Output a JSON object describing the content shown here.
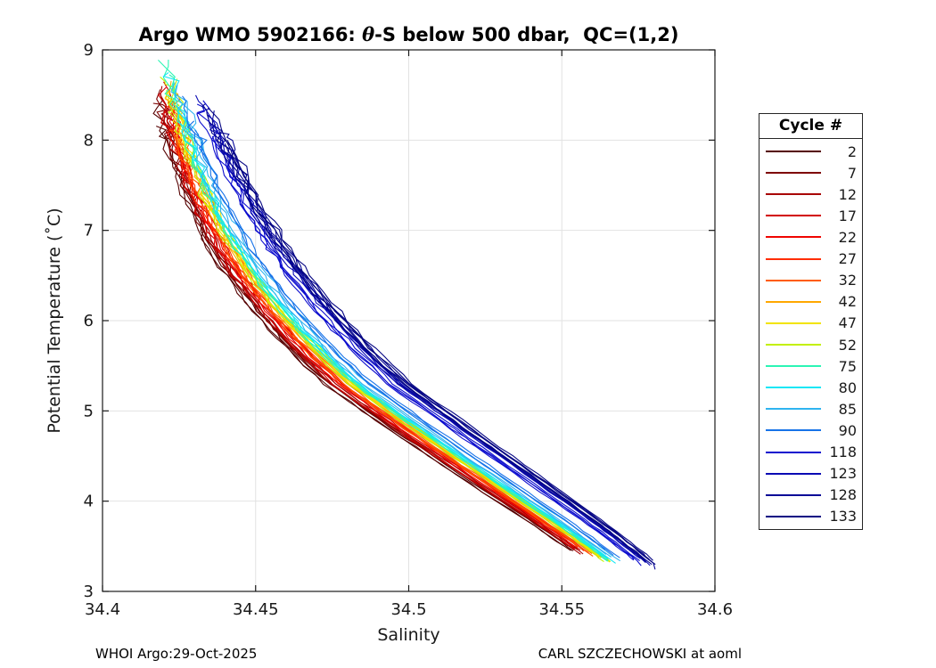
{
  "figure": {
    "title_prefix": "Argo WMO 5902166: ",
    "title_theta": "θ",
    "title_suffix": "-S below 500 dbar,  QC=(1,2)",
    "footer_left": "WHOI Argo:29-Oct-2025",
    "footer_right": "CARL SZCZECHOWSKI at aoml"
  },
  "chart_data": {
    "type": "line",
    "title": "Argo WMO 5902166: θ-S below 500 dbar,  QC=(1,2)",
    "xlabel": "Salinity",
    "ylabel": "Potential Temperature (˚C)",
    "xlim": [
      34.4,
      34.6
    ],
    "ylim": [
      3,
      9
    ],
    "xticks": [
      34.4,
      34.45,
      34.5,
      34.55,
      34.6
    ],
    "xtick_labels": [
      "34.4",
      "34.45",
      "34.5",
      "34.55",
      "34.6"
    ],
    "yticks": [
      3,
      4,
      5,
      6,
      7,
      8,
      9
    ],
    "ytick_labels": [
      "3",
      "4",
      "5",
      "6",
      "7",
      "8",
      "9"
    ],
    "grid": true,
    "legend_title": "Cycle #",
    "legend_position": "right-outside",
    "axis_color": "#1a1a1a",
    "grid_color": "#e2e2e2",
    "description": "Theta-S profiles below 500 dbar for Argo float WMO 5902166; one curve bundle per cycle, jet colormap from dark red (early cycles) to navy (late cycles). Later cycles (118-133) are saltier at a given temperature; all curves descend from ~(34.42, 8.6) to ~(34.58, 3.3).",
    "base_curve": {
      "t": [
        8.9,
        8.6,
        8.3,
        8.0,
        7.7,
        7.4,
        7.1,
        6.8,
        6.5,
        6.2,
        5.9,
        5.6,
        5.3,
        5.0,
        4.7,
        4.4,
        4.1,
        3.8,
        3.6,
        3.45,
        3.3
      ],
      "s": [
        34.4205,
        34.4225,
        34.425,
        34.428,
        34.4312,
        34.4348,
        34.439,
        34.444,
        34.45,
        34.4568,
        34.4645,
        34.473,
        34.4825,
        34.495,
        34.5075,
        34.5205,
        34.5335,
        34.5465,
        34.555,
        34.561,
        34.567
      ]
    },
    "series": [
      {
        "cycle": "2",
        "color": "#550000",
        "s_offset": -0.01,
        "t_top": 8.5,
        "t_end": 3.5
      },
      {
        "cycle": "7",
        "color": "#7e0000",
        "s_offset": -0.0082,
        "t_top": 8.55,
        "t_end": 3.5
      },
      {
        "cycle": "12",
        "color": "#a80000",
        "s_offset": -0.0068,
        "t_top": 8.6,
        "t_end": 3.46
      },
      {
        "cycle": "17",
        "color": "#d20000",
        "s_offset": -0.0056,
        "t_top": 8.65,
        "t_end": 3.46
      },
      {
        "cycle": "22",
        "color": "#f00500",
        "s_offset": -0.0047,
        "t_top": 8.45,
        "t_end": 3.45
      },
      {
        "cycle": "27",
        "color": "#ff2d00",
        "s_offset": -0.0039,
        "t_top": 8.4,
        "t_end": 3.43
      },
      {
        "cycle": "32",
        "color": "#ff5c00",
        "s_offset": -0.0031,
        "t_top": 8.55,
        "t_end": 3.42
      },
      {
        "cycle": "42",
        "color": "#ffa800",
        "s_offset": -0.0021,
        "t_top": 8.65,
        "t_end": 3.38
      },
      {
        "cycle": "47",
        "color": "#f2e400",
        "s_offset": -0.0014,
        "t_top": 8.6,
        "t_end": 3.37
      },
      {
        "cycle": "52",
        "color": "#c3f000",
        "s_offset": -0.0007,
        "t_top": 8.7,
        "t_end": 3.36
      },
      {
        "cycle": "75",
        "color": "#2bf5b4",
        "s_offset": 0.0004,
        "t_top": 8.9,
        "t_end": 3.36
      },
      {
        "cycle": "80",
        "color": "#16e7f5",
        "s_offset": 0.0012,
        "t_top": 8.75,
        "t_end": 3.36
      },
      {
        "cycle": "85",
        "color": "#2fb4f0",
        "s_offset": 0.0026,
        "t_top": 8.65,
        "t_end": 3.38
      },
      {
        "cycle": "90",
        "color": "#1773e8",
        "s_offset": 0.0046,
        "t_top": 8.5,
        "t_end": 3.4
      },
      {
        "cycle": "118",
        "color": "#0d0dce",
        "s_offset": 0.0125,
        "t_top": 8.45,
        "t_end": 3.34
      },
      {
        "cycle": "123",
        "color": "#0a0ab4",
        "s_offset": 0.014,
        "t_top": 8.5,
        "t_end": 3.32
      },
      {
        "cycle": "128",
        "color": "#070796",
        "s_offset": 0.0155,
        "t_top": 8.4,
        "t_end": 3.3
      },
      {
        "cycle": "133",
        "color": "#050583",
        "s_offset": 0.017,
        "t_top": 8.35,
        "t_end": 3.3
      }
    ]
  }
}
